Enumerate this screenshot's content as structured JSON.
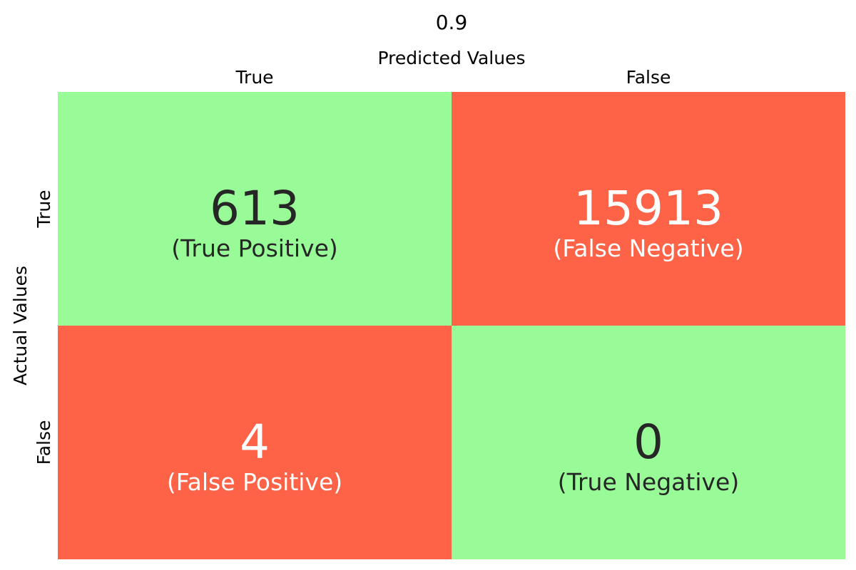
{
  "chart_data": {
    "type": "heatmap",
    "title": "0.9",
    "xlabel": "Predicted Values",
    "ylabel": "Actual Values",
    "x_categories": [
      "True",
      "False"
    ],
    "y_categories": [
      "True",
      "False"
    ],
    "colors": {
      "correct": "#98fb98",
      "incorrect": "#ff6347",
      "dark_text": "#262626",
      "light_text": "#ffffff"
    },
    "cells": [
      {
        "row": 0,
        "col": 0,
        "value": 613,
        "label": "(True Positive)",
        "kind": "correct"
      },
      {
        "row": 0,
        "col": 1,
        "value": 15913,
        "label": "(False Negative)",
        "kind": "incorrect"
      },
      {
        "row": 1,
        "col": 0,
        "value": 4,
        "label": "(False Positive)",
        "kind": "incorrect"
      },
      {
        "row": 1,
        "col": 1,
        "value": 0,
        "label": "(True Negative)",
        "kind": "correct"
      }
    ]
  }
}
